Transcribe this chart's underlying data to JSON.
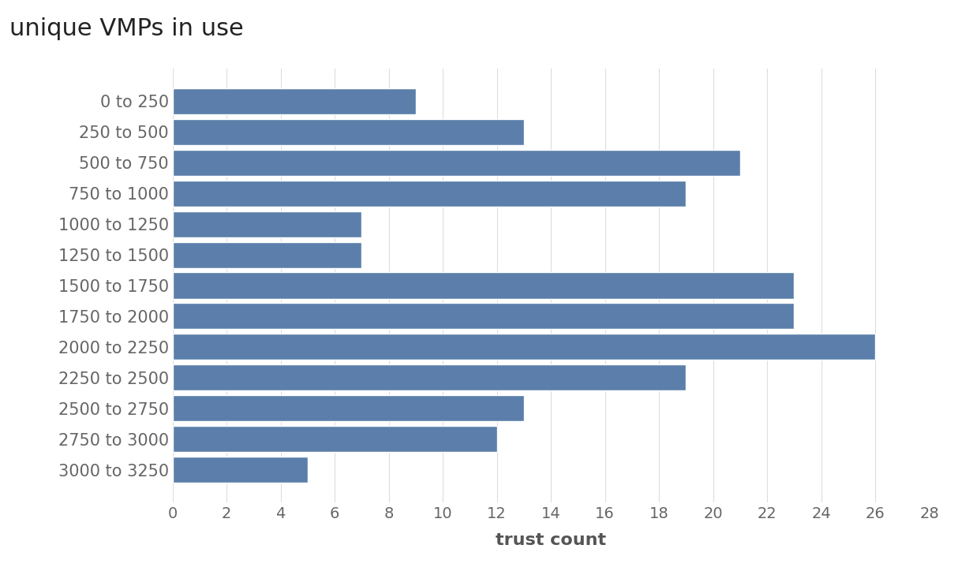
{
  "title": "unique VMPs in use",
  "xlabel": "trust count",
  "categories": [
    "0 to 250",
    "250 to 500",
    "500 to 750",
    "750 to 1000",
    "1000 to 1250",
    "1250 to 1500",
    "1500 to 1750",
    "1750 to 2000",
    "2000 to 2250",
    "2250 to 2500",
    "2500 to 2750",
    "2750 to 3000",
    "3000 to 3250"
  ],
  "values": [
    9,
    13,
    21,
    19,
    7,
    7,
    23,
    23,
    26,
    19,
    13,
    12,
    5
  ],
  "bar_color": "#5b7faa",
  "background_color": "#ffffff",
  "xlim": [
    0,
    28
  ],
  "xticks": [
    0,
    2,
    4,
    6,
    8,
    10,
    12,
    14,
    16,
    18,
    20,
    22,
    24,
    26,
    28
  ],
  "title_fontsize": 22,
  "xlabel_fontsize": 16,
  "tick_fontsize": 14,
  "label_fontsize": 15,
  "grid_color": "#dddddd"
}
